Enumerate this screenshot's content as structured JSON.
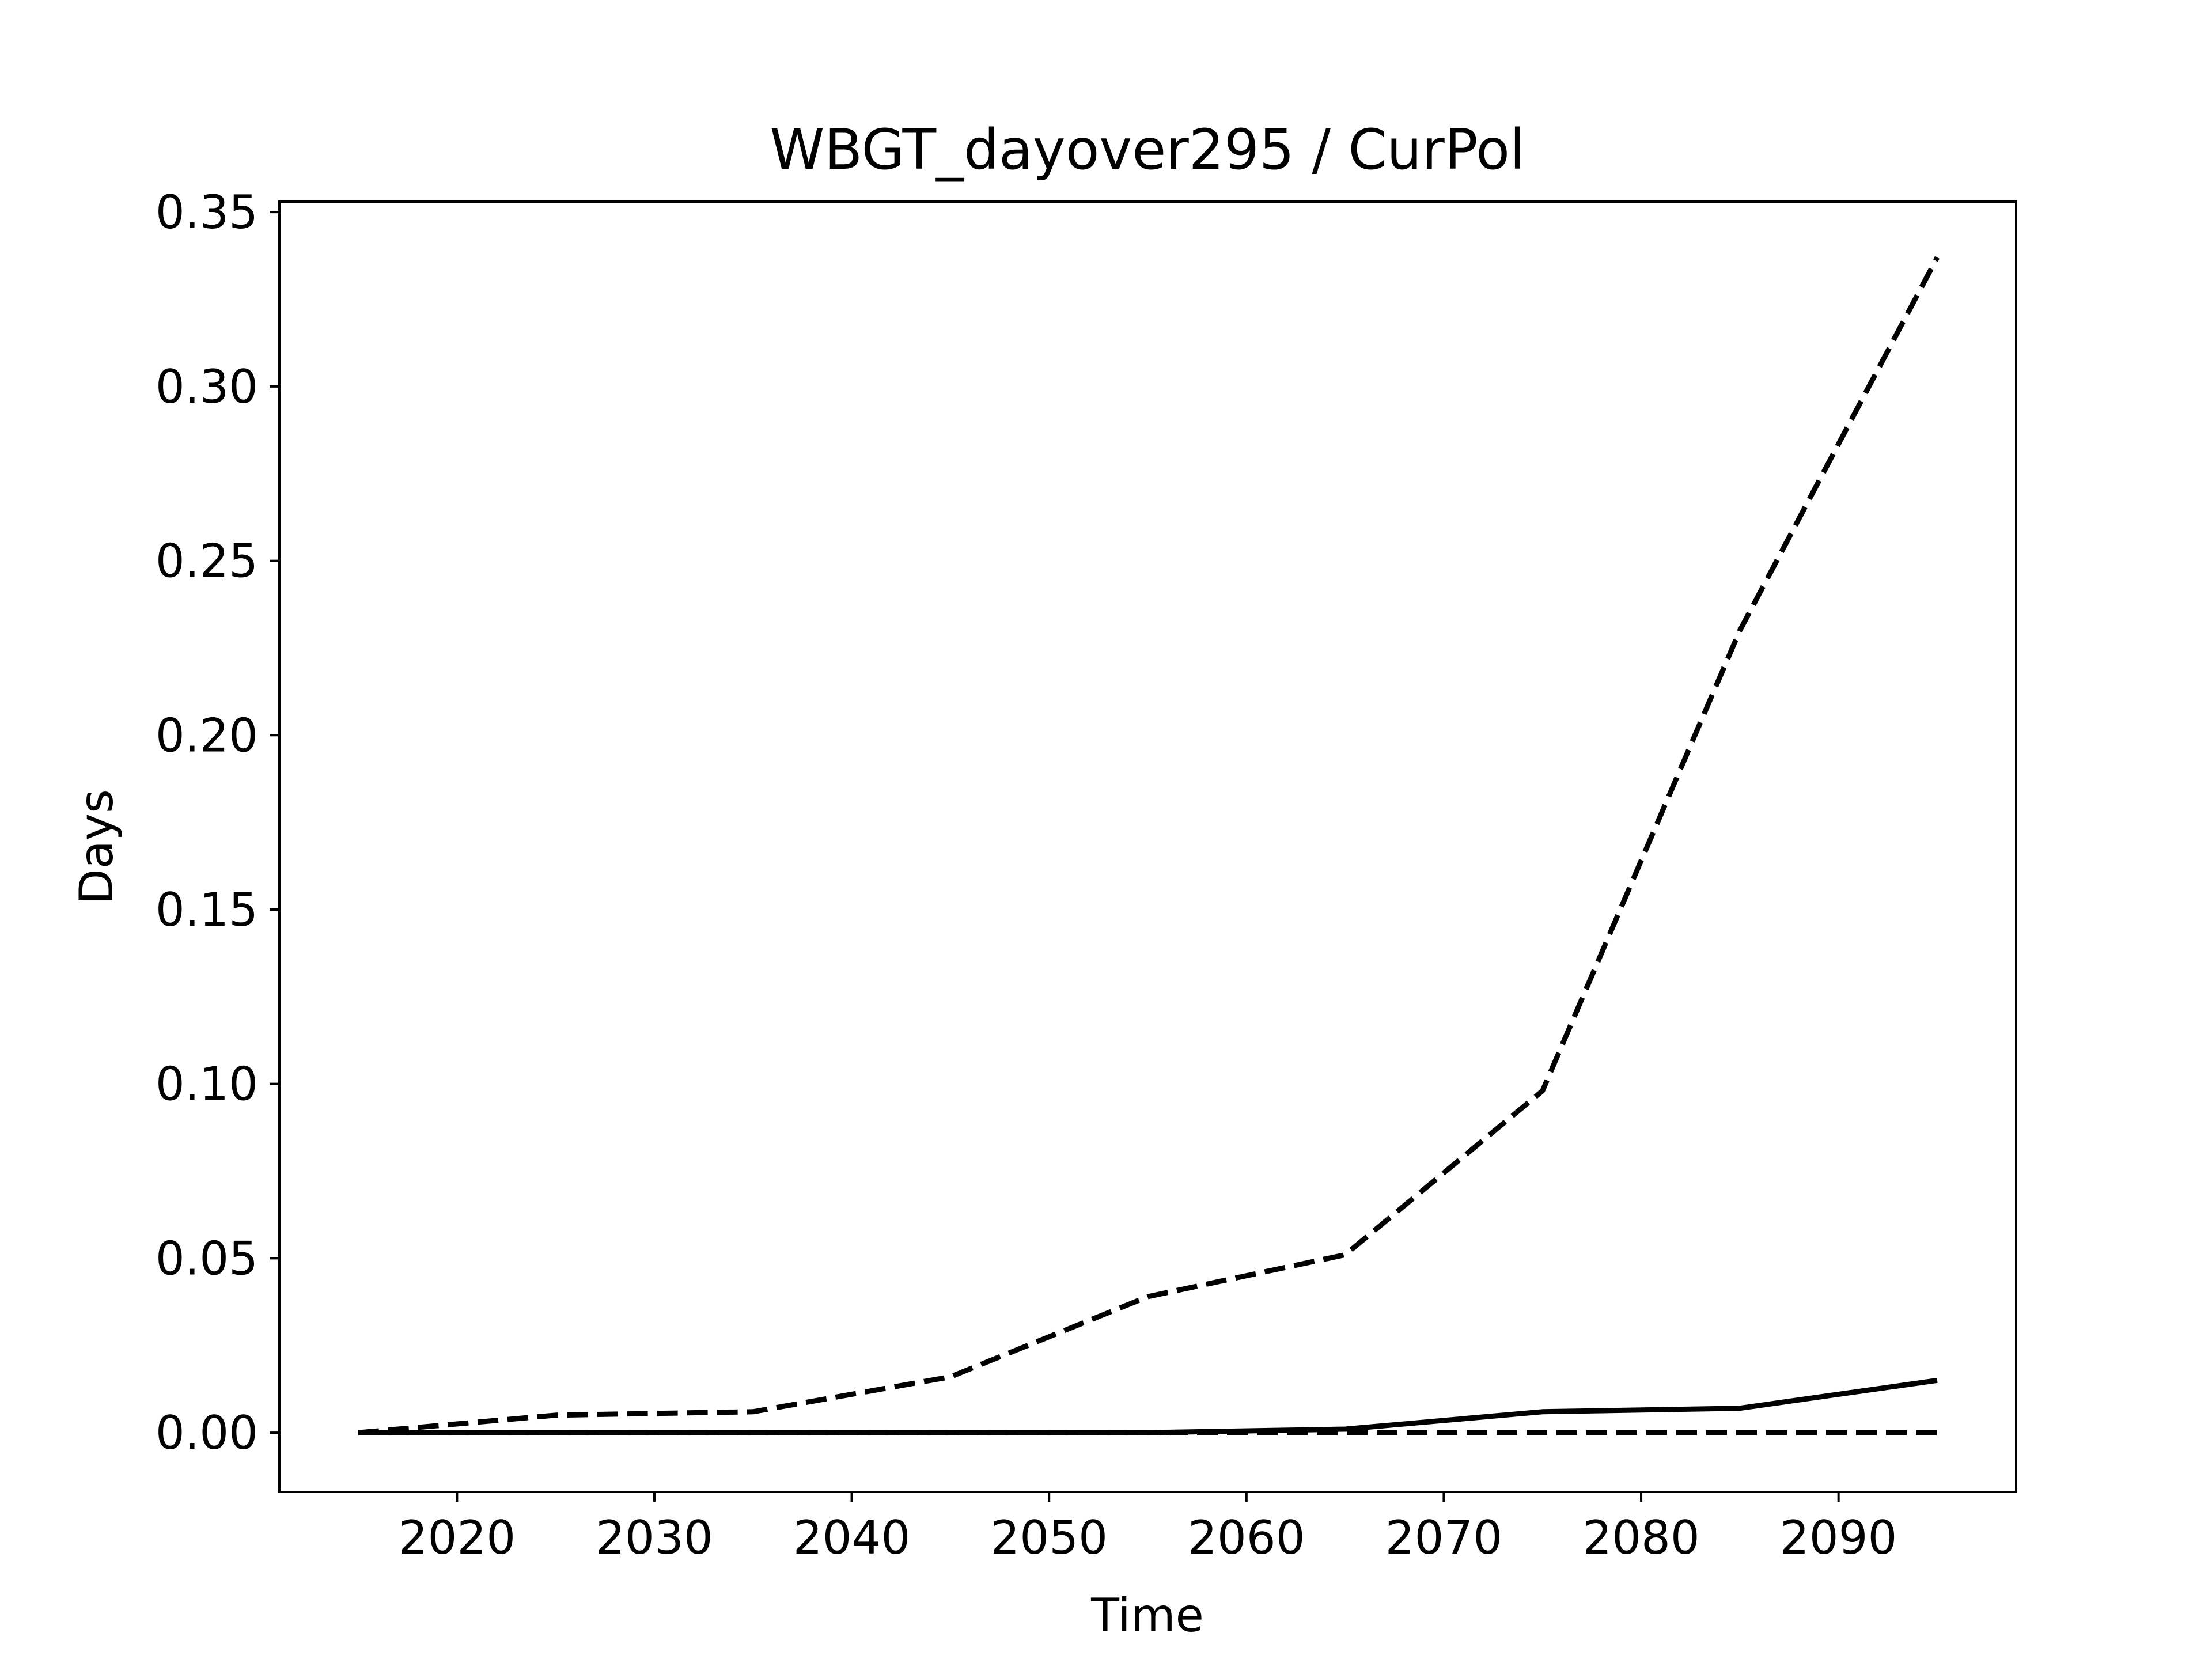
{
  "chart_data": {
    "type": "line",
    "title": "WBGT_dayover295 / CurPol",
    "xlabel": "Time",
    "ylabel": "Days",
    "xlim": [
      2011,
      2099
    ],
    "ylim": [
      -0.017,
      0.353
    ],
    "x_ticks": [
      2020,
      2030,
      2040,
      2050,
      2060,
      2070,
      2080,
      2090
    ],
    "y_ticks": [
      0.0,
      0.05,
      0.1,
      0.15,
      0.2,
      0.25,
      0.3,
      0.35
    ],
    "grid": false,
    "x": [
      2015,
      2025,
      2035,
      2045,
      2055,
      2065,
      2075,
      2085,
      2095
    ],
    "series": [
      {
        "style": "dashed",
        "color": "#000000",
        "values": [
          0.0,
          0.005,
          0.006,
          0.016,
          0.039,
          0.051,
          0.098,
          0.23,
          0.337
        ]
      },
      {
        "style": "solid",
        "color": "#000000",
        "values": [
          0.0,
          0.0,
          0.0,
          0.0,
          0.0,
          0.001,
          0.006,
          0.007,
          0.015
        ]
      },
      {
        "style": "dashed",
        "color": "#000000",
        "values": [
          0.0,
          0.0,
          0.0,
          0.0,
          0.0,
          0.0,
          0.0,
          0.0,
          0.0
        ]
      }
    ]
  }
}
